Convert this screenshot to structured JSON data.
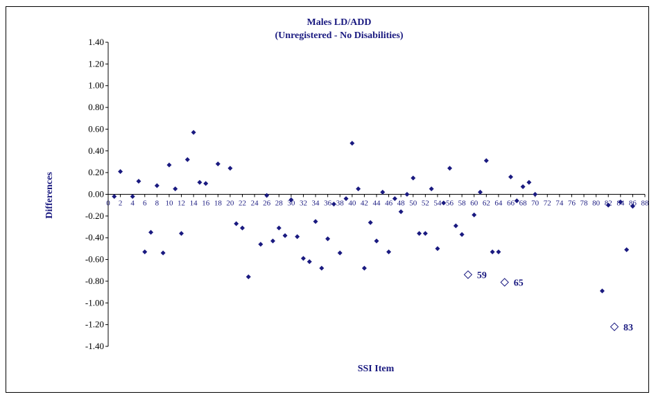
{
  "chart_data": {
    "type": "scatter",
    "title": "Males LD/ADD",
    "subtitle": "(Unregistered  - No Disabilities)",
    "xlabel": "SSI Item",
    "ylabel": "Differences",
    "xlim": [
      0,
      88
    ],
    "ylim": [
      -1.4,
      1.4
    ],
    "y_ticks": [
      "1.40",
      "1.20",
      "1.00",
      "0.80",
      "0.60",
      "0.40",
      "0.20",
      "0.00",
      "-0.20",
      "-0.40",
      "-0.60",
      "-0.80",
      "-1.00",
      "-1.20",
      "-1.40"
    ],
    "x_ticks": [
      "0",
      "2",
      "4",
      "6",
      "8",
      "10",
      "12",
      "14",
      "16",
      "18",
      "20",
      "22",
      "24",
      "26",
      "28",
      "30",
      "32",
      "34",
      "36",
      "38",
      "40",
      "42",
      "44",
      "46",
      "48",
      "50",
      "52",
      "54",
      "56",
      "58",
      "60",
      "62",
      "64",
      "66",
      "68",
      "70",
      "72",
      "74",
      "76",
      "78",
      "80",
      "82",
      "84",
      "86",
      "88"
    ],
    "grid": false,
    "legend": "none",
    "marker_color": "#1a1a80",
    "series": [
      {
        "marker": "filled-diamond",
        "points": [
          [
            1,
            -0.02
          ],
          [
            2,
            0.21
          ],
          [
            4,
            -0.02
          ],
          [
            5,
            0.12
          ],
          [
            6,
            -0.53
          ],
          [
            7,
            -0.35
          ],
          [
            8,
            0.08
          ],
          [
            9,
            -0.54
          ],
          [
            10,
            0.27
          ],
          [
            11,
            0.05
          ],
          [
            12,
            -0.36
          ],
          [
            13,
            0.32
          ],
          [
            14,
            0.57
          ],
          [
            15,
            0.11
          ],
          [
            16,
            0.1
          ],
          [
            18,
            0.28
          ],
          [
            20,
            0.24
          ],
          [
            21,
            -0.27
          ],
          [
            22,
            -0.31
          ],
          [
            23,
            -0.76
          ],
          [
            25,
            -0.46
          ],
          [
            26,
            -0.01
          ],
          [
            27,
            -0.43
          ],
          [
            28,
            -0.31
          ],
          [
            29,
            -0.38
          ],
          [
            30,
            -0.05
          ],
          [
            31,
            -0.39
          ],
          [
            32,
            -0.59
          ],
          [
            33,
            -0.62
          ],
          [
            34,
            -0.25
          ],
          [
            35,
            -0.68
          ],
          [
            36,
            -0.41
          ],
          [
            37,
            -0.09
          ],
          [
            38,
            -0.54
          ],
          [
            39,
            -0.04
          ],
          [
            40,
            0.47
          ],
          [
            41,
            0.05
          ],
          [
            42,
            -0.68
          ],
          [
            43,
            -0.26
          ],
          [
            44,
            -0.43
          ],
          [
            45,
            0.02
          ],
          [
            46,
            -0.53
          ],
          [
            47,
            -0.04
          ],
          [
            48,
            -0.16
          ],
          [
            49,
            0.0
          ],
          [
            50,
            0.15
          ],
          [
            51,
            -0.36
          ],
          [
            52,
            -0.36
          ],
          [
            53,
            0.05
          ],
          [
            54,
            -0.5
          ],
          [
            55,
            -0.08
          ],
          [
            56,
            0.24
          ],
          [
            57,
            -0.29
          ],
          [
            58,
            -0.37
          ],
          [
            60,
            -0.19
          ],
          [
            61,
            0.02
          ],
          [
            62,
            0.31
          ],
          [
            63,
            -0.53
          ],
          [
            64,
            -0.53
          ],
          [
            66,
            0.16
          ],
          [
            67,
            -0.06
          ],
          [
            68,
            0.07
          ],
          [
            69,
            0.11
          ],
          [
            70,
            0.0
          ],
          [
            81,
            -0.89
          ],
          [
            82,
            -0.1
          ],
          [
            84,
            -0.07
          ],
          [
            85,
            -0.51
          ],
          [
            86,
            -0.11
          ]
        ]
      },
      {
        "marker": "hollow-diamond",
        "points": [
          [
            59,
            -0.74
          ],
          [
            65,
            -0.81
          ],
          [
            83,
            -1.22
          ]
        ],
        "labels": [
          "59",
          "65",
          "83"
        ]
      }
    ]
  }
}
